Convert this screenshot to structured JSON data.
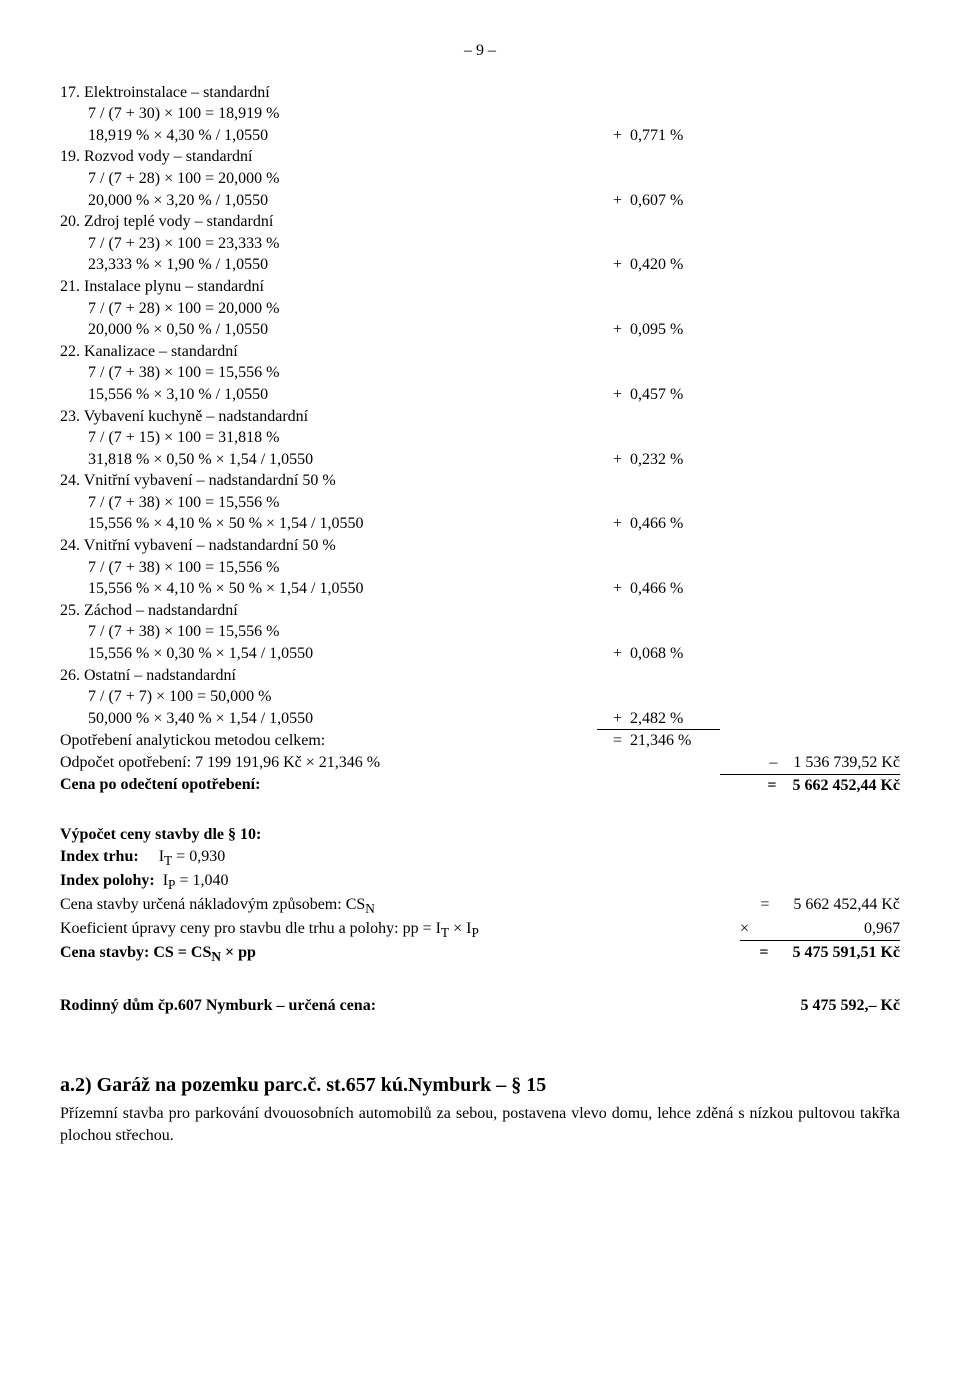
{
  "page_number": "– 9 –",
  "items": [
    {
      "title": "17. Elektroinstalace – standardní",
      "formula": "7 / (7 + 30) × 100 = 18,919 %",
      "calc": "18,919 % × 4,30 % / 1,0550",
      "op": "+",
      "val": "0,771 %"
    },
    {
      "title": "19. Rozvod vody – standardní",
      "formula": "7 / (7 + 28) × 100 = 20,000 %",
      "calc": "20,000 % × 3,20 % / 1,0550",
      "op": "+",
      "val": "0,607 %"
    },
    {
      "title": "20. Zdroj teplé vody – standardní",
      "formula": "7 / (7 + 23) × 100 = 23,333 %",
      "calc": "23,333 % × 1,90 % / 1,0550",
      "op": "+",
      "val": "0,420 %"
    },
    {
      "title": "21. Instalace plynu – standardní",
      "formula": "7 / (7 + 28) × 100 = 20,000 %",
      "calc": "20,000 % × 0,50 % / 1,0550",
      "op": "+",
      "val": "0,095 %"
    },
    {
      "title": "22. Kanalizace – standardní",
      "formula": "7 / (7 + 38) × 100 = 15,556 %",
      "calc": "15,556 % × 3,10 % / 1,0550",
      "op": "+",
      "val": "0,457 %"
    },
    {
      "title": "23. Vybavení kuchyně – nadstandardní",
      "formula": "7 / (7 + 15) × 100 = 31,818 %",
      "calc": "31,818 % × 0,50 % × 1,54 / 1,0550",
      "op": "+",
      "val": "0,232 %"
    },
    {
      "title": "24. Vnitřní vybavení – nadstandardní 50 %",
      "formula": "7 / (7 + 38) × 100 = 15,556 %",
      "calc": "15,556 % × 4,10 % × 50 % × 1,54 / 1,0550",
      "op": "+",
      "val": "0,466 %"
    },
    {
      "title": "24. Vnitřní vybavení – nadstandardní 50 %",
      "formula": "7 / (7 + 38) × 100 = 15,556 %",
      "calc": "15,556 % × 4,10 % × 50 % × 1,54 / 1,0550",
      "op": "+",
      "val": "0,466 %"
    },
    {
      "title": "25. Záchod – nadstandardní",
      "formula": "7 / (7 + 38) × 100 = 15,556 %",
      "calc": "15,556 % × 0,30 % × 1,54 / 1,0550",
      "op": "+",
      "val": "0,068 %"
    },
    {
      "title": "26. Ostatní – nadstandardní",
      "formula": "7 / (7 + 7) × 100 = 50,000 %",
      "calc": "50,000 % × 3,40 % × 1,54 / 1,0550",
      "op": "+",
      "val": "2,482 %",
      "last": true
    }
  ],
  "totals": {
    "opotrebeni_label": "Opotřebení analytickou metodou celkem:",
    "opotrebeni_op": "=",
    "opotrebeni_val": "21,346 %",
    "odpocet_label": "Odpočet opotřebení: 7 199 191,96 Kč × 21,346 %",
    "odpocet_op": "–",
    "odpocet_val": "1 536 739,52 Kč",
    "cena_po_label": "Cena po odečtení opotřebení:",
    "cena_po_op": "=",
    "cena_po_val": "5 662 452,44 Kč"
  },
  "vypocet": {
    "heading": "Výpočet ceny stavby dle § 10:",
    "index_trhu_label": "Index trhu:",
    "index_trhu_val": "IT = 0,930",
    "index_polohy_label": "Index polohy:",
    "index_polohy_val": "IP = 1,040",
    "csn_label": "Cena stavby určená nákladovým způsobem: CSN",
    "csn_op": "=",
    "csn_val": "5 662 452,44 Kč",
    "koef_label": "Koeficient úpravy ceny pro stavbu dle trhu a polohy: pp = IT × IP",
    "koef_op": "×",
    "koef_val": "0,967",
    "cena_stavby_label": "Cena stavby: CS = CSN × pp",
    "cena_stavby_op": "=",
    "cena_stavby_val": "5 475 591,51 Kč"
  },
  "urcena": {
    "label": "Rodinný dům čp.607 Nymburk – určená cena:",
    "val": "5 475 592,–  Kč"
  },
  "garaz": {
    "heading": "a.2)  Garáž na pozemku parc.č. st.657 kú.Nymburk – § 15",
    "text": "Přízemní stavba pro parkování dvouosobních automobilů za sebou, postavena vlevo domu, lehce zděná s nízkou pultovou takřka plochou střechou."
  }
}
